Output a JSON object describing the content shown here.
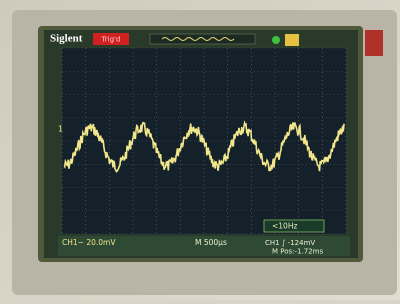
{
  "header": {
    "brand": "Siglent",
    "status": "Trig'd"
  },
  "screen": {
    "channel_marker": "1",
    "trigger_filter": "<10Hz"
  },
  "footer": {
    "channel_scale": "CH1~ 20.0mV",
    "time_scale": "M 500μs",
    "trigger_level": "CH1 ∫ -124mV",
    "position": "M Pos:-1.72ms"
  }
}
